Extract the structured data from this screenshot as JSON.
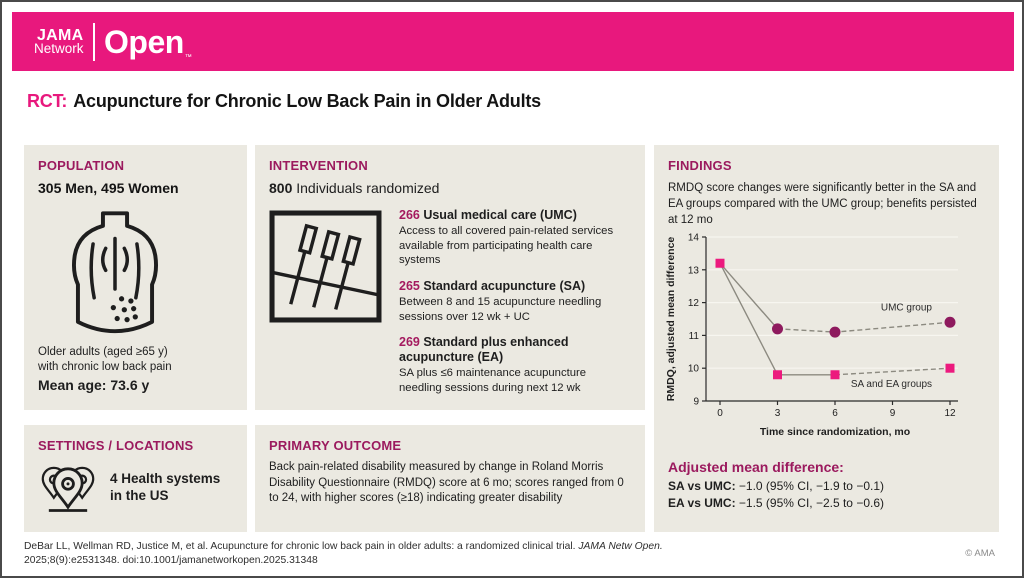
{
  "brand": {
    "jama": "JAMA",
    "network": "Network",
    "open": "Open",
    "tm": "™"
  },
  "title": {
    "tag": "RCT:",
    "text": "Acupuncture for Chronic Low Back Pain in Older Adults"
  },
  "population": {
    "heading": "POPULATION",
    "counts": "305 Men, 495 Women",
    "description_line1": "Older adults (aged ≥65 y)",
    "description_line2": "with chronic low back pain",
    "mean_age": "Mean age: 73.6 y"
  },
  "intervention": {
    "heading": "INTERVENTION",
    "count": "800",
    "count_suffix": " Individuals randomized",
    "arms": [
      {
        "n": "266",
        "name": " Usual medical care (UMC)",
        "description": "Access to all covered pain-related services available from participating health care systems"
      },
      {
        "n": "265",
        "name": " Standard acupuncture (SA)",
        "description": "Between 8 and 15 acupuncture needling sessions over 12 wk + UC"
      },
      {
        "n": "269",
        "name": " Standard plus enhanced acupuncture (EA)",
        "description": "SA plus ≤6 maintenance acupuncture needling sessions during next 12 wk"
      }
    ]
  },
  "settings": {
    "heading": "SETTINGS / LOCATIONS",
    "text_line1": "4 Health systems",
    "text_line2": "in the US"
  },
  "primary_outcome": {
    "heading": "PRIMARY OUTCOME",
    "text": "Back pain-related disability measured by change in Roland Morris Disability Questionnaire (RMDQ) score at 6 mo; scores ranged from 0 to 24, with higher scores (≥18) indicating greater disability"
  },
  "findings": {
    "heading": "FINDINGS",
    "summary": "RMDQ score changes were significantly better in the SA and EA groups compared with the UMC group; benefits persisted at 12 mo",
    "adjusted_heading": "Adjusted mean difference:",
    "comparisons": [
      {
        "label": "SA vs UMC:",
        "value": " −1.0 (95% CI, −1.9 to −0.1)"
      },
      {
        "label": "EA vs UMC:",
        "value": " −1.5 (95% CI, −2.5 to −0.6)"
      }
    ]
  },
  "chart_data": {
    "type": "line",
    "x": [
      0,
      3,
      6,
      12
    ],
    "series": [
      {
        "name": "UMC group",
        "values": [
          13.2,
          11.2,
          11.1,
          11.4
        ],
        "color": "#8E1A5E",
        "marker": "circle",
        "skip_first_marker": true,
        "dash_from_index": 1,
        "label_position": "above"
      },
      {
        "name": "SA and EA groups",
        "values": [
          13.2,
          9.8,
          9.8,
          10.0
        ],
        "color": "#EC1A7E",
        "marker": "square",
        "skip_first_marker": false,
        "dash_from_index": 2,
        "label_position": "below"
      }
    ],
    "xlabel": "Time since randomization, mo",
    "ylabel": "RMDQ, adjusted mean difference",
    "ylim": [
      9,
      14
    ],
    "yticks": [
      9,
      10,
      11,
      12,
      13,
      14
    ],
    "xticks": [
      0,
      3,
      6,
      9,
      12
    ],
    "grid": true,
    "legend_position": "inline-labels",
    "line_color": "#8C8A80"
  },
  "footer": {
    "citation_part1": "DeBar LL, Wellman RD, Justice M, et al. Acupuncture for chronic low back pain in older adults: a randomized clinical trial. ",
    "citation_journal": "JAMA Netw Open.",
    "citation_part2": " 2025;8(9):e2531348. doi:10.1001/jamanetworkopen.2025.31348",
    "copyright": "© AMA"
  },
  "colors": {
    "brand_pink": "#E8187D",
    "heading_magenta": "#9B1A5E",
    "panel_bg": "#EBE9E1",
    "umc_point": "#8E1A5E",
    "sa_point": "#EC1A7E",
    "chart_line_gray": "#8C8A80"
  }
}
